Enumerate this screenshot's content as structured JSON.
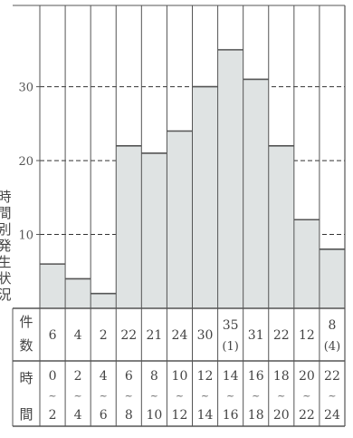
{
  "chart_data": {
    "type": "bar",
    "title": "",
    "ylabel": "時間別発生状況",
    "ylim": [
      0,
      41
    ],
    "yticks": [
      10,
      20,
      30
    ],
    "grid": "dashed horizontal",
    "categories": [
      "0~2",
      "2~4",
      "4~6",
      "6~8",
      "8~10",
      "10~12",
      "12~14",
      "14~16",
      "16~18",
      "18~20",
      "20~22",
      "22~24"
    ],
    "values": [
      6,
      4,
      2,
      22,
      21,
      24,
      30,
      35,
      31,
      22,
      12,
      8
    ],
    "count_labels": [
      "6",
      "4",
      "2",
      "22",
      "21",
      "24",
      "30",
      "35",
      "31",
      "22",
      "12",
      "8"
    ],
    "count_sub_labels": [
      "",
      "",
      "",
      "",
      "",
      "",
      "",
      "(1)",
      "",
      "",
      "",
      "(4)"
    ],
    "hour_from": [
      "0",
      "2",
      "4",
      "6",
      "8",
      "10",
      "12",
      "14",
      "16",
      "18",
      "20",
      "22"
    ],
    "hour_to": [
      "2",
      "4",
      "6",
      "8",
      "10",
      "12",
      "14",
      "16",
      "18",
      "20",
      "22",
      "24"
    ],
    "tilde": "~",
    "row_headers": {
      "count": [
        "件",
        "数"
      ],
      "hour": [
        "時",
        "間"
      ]
    },
    "colors": {
      "bar_fill": "#dfe3e3",
      "line": "#555555"
    }
  }
}
